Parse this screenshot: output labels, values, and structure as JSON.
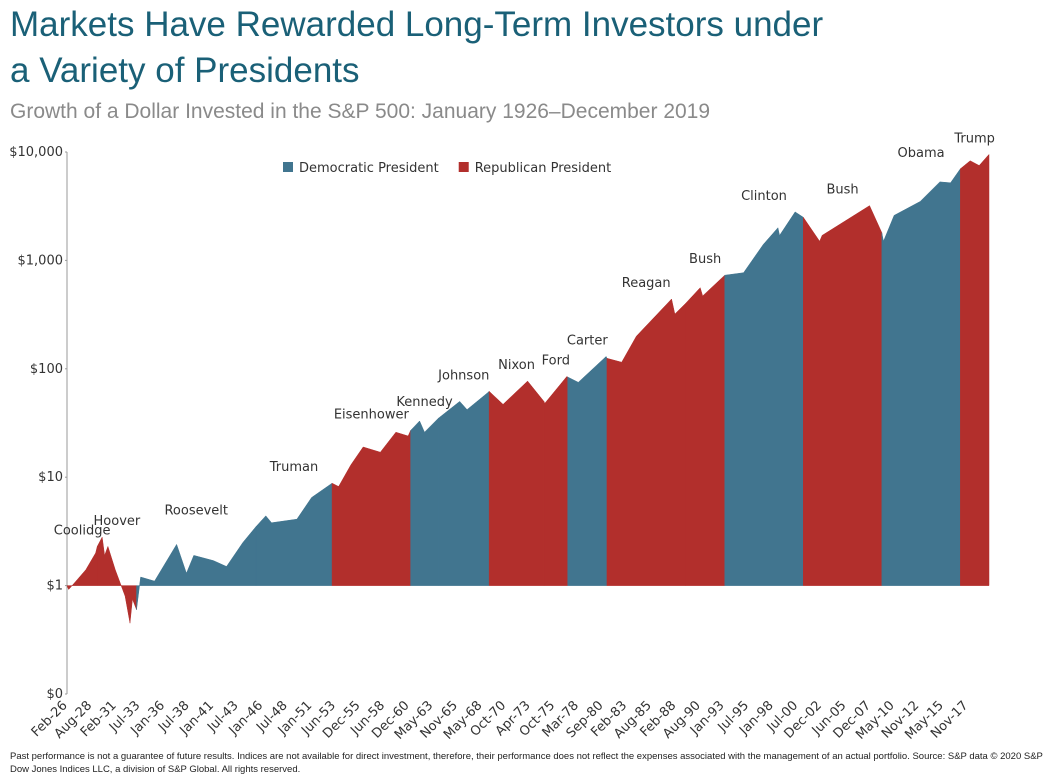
{
  "chart_data": {
    "type": "area",
    "title": "Markets Have Rewarded Long-Term Investors under a Variety of Presidents",
    "subtitle": "Growth of a Dollar Invested in the S&P 500: January 1926–December 2019",
    "footnote": "Past performance is not a guarantee of future results. Indices are not available for direct investment, therefore, their performance does not reflect the expenses associated with the management of an actual portfolio. Source: S&P data © 2020 S&P Dow Jones Indices LLC, a division of S&P Global. All rights reserved.",
    "log": true,
    "ylim": [
      0.1,
      10000
    ],
    "yticks": [
      {
        "value": 0.1,
        "label": "$0"
      },
      {
        "value": 1,
        "label": "$1"
      },
      {
        "value": 10,
        "label": "$10"
      },
      {
        "value": 100,
        "label": "$100"
      },
      {
        "value": 1000,
        "label": "$1,000"
      },
      {
        "value": 10000,
        "label": "$10,000"
      }
    ],
    "xlim": [
      "Jan-26",
      "Dec-19"
    ],
    "xticks": [
      "Feb-26",
      "Aug-28",
      "Feb-31",
      "Jul-33",
      "Jan-36",
      "Jul-38",
      "Jan-41",
      "Jul-43",
      "Jan-46",
      "Jul-48",
      "Jan-51",
      "Jun-53",
      "Dec-55",
      "Jun-58",
      "Dec-60",
      "May-63",
      "Nov-65",
      "May-68",
      "Oct-70",
      "Apr-73",
      "Oct-75",
      "Mar-78",
      "Sep-80",
      "Feb-83",
      "Aug-85",
      "Feb-88",
      "Aug-90",
      "Jan-93",
      "Jul-95",
      "Jan-98",
      "Jul-00",
      "Dec-02",
      "Jun-05",
      "Dec-07",
      "May-10",
      "Nov-12",
      "May-15",
      "Nov-17"
    ],
    "legend": [
      {
        "name": "Democratic President",
        "color": "#41758f"
      },
      {
        "name": "Republican President",
        "color": "#b22f2c"
      }
    ],
    "series": [
      {
        "name": "Coolidge",
        "color": "#b22f2c",
        "x": [
          "Jan-26",
          "Mar-26",
          "Dec-26",
          "Dec-27",
          "Dec-28",
          "Feb-29"
        ],
        "values": [
          1,
          0.92,
          1.1,
          1.4,
          2.0,
          2.3
        ]
      },
      {
        "name": "Hoover",
        "color": "#b22f2c",
        "x": [
          "Feb-29",
          "Aug-29",
          "Nov-29",
          "Mar-30",
          "Dec-30",
          "Dec-31",
          "Jun-32",
          "Sep-32",
          "Feb-33"
        ],
        "values": [
          2.3,
          2.8,
          1.9,
          2.3,
          1.4,
          0.8,
          0.45,
          0.75,
          0.6
        ]
      },
      {
        "name": "Roosevelt",
        "color": "#41758f",
        "x": [
          "Feb-33",
          "Jul-33",
          "Dec-34",
          "Mar-37",
          "Mar-38",
          "Dec-38",
          "Dec-40",
          "Apr-42",
          "Dec-43",
          "Apr-45"
        ],
        "values": [
          0.6,
          1.2,
          1.1,
          2.4,
          1.3,
          1.9,
          1.7,
          1.5,
          2.5,
          3.5
        ]
      },
      {
        "name": "Truman",
        "color": "#41758f",
        "x": [
          "Apr-45",
          "Apr-46",
          "Nov-46",
          "Jun-49",
          "Dec-50",
          "Jan-53"
        ],
        "values": [
          3.5,
          4.4,
          3.8,
          4.1,
          6.5,
          8.8
        ]
      },
      {
        "name": "Eisenhower",
        "color": "#b22f2c",
        "x": [
          "Jan-53",
          "Sep-53",
          "Dec-54",
          "Mar-56",
          "Dec-57",
          "Jul-59",
          "Oct-60",
          "Jan-61"
        ],
        "values": [
          8.8,
          8.2,
          13,
          19,
          17,
          26,
          24,
          27
        ]
      },
      {
        "name": "Kennedy",
        "color": "#41758f",
        "x": [
          "Jan-61",
          "Dec-61",
          "Jun-62",
          "Nov-63"
        ],
        "values": [
          27,
          33,
          26,
          35
        ]
      },
      {
        "name": "Johnson",
        "color": "#41758f",
        "x": [
          "Nov-63",
          "Jan-66",
          "Oct-66",
          "Nov-68",
          "Jan-69"
        ],
        "values": [
          35,
          50,
          42,
          60,
          62
        ]
      },
      {
        "name": "Nixon",
        "color": "#b22f2c",
        "x": [
          "Jan-69",
          "Jun-70",
          "Dec-72",
          "Aug-74"
        ],
        "values": [
          62,
          47,
          77,
          50
        ]
      },
      {
        "name": "Ford",
        "color": "#b22f2c",
        "x": [
          "Aug-74",
          "Sep-74",
          "Dec-76",
          "Jan-77"
        ],
        "values": [
          50,
          48,
          85,
          84
        ]
      },
      {
        "name": "Carter",
        "color": "#41758f",
        "x": [
          "Jan-77",
          "Feb-78",
          "Dec-80",
          "Jan-81"
        ],
        "values": [
          84,
          75,
          130,
          125
        ]
      },
      {
        "name": "Reagan",
        "color": "#b22f2c",
        "x": [
          "Jan-81",
          "Jul-82",
          "Jan-84",
          "Aug-87",
          "Dec-87",
          "Jan-89"
        ],
        "values": [
          125,
          115,
          200,
          440,
          320,
          400
        ]
      },
      {
        "name": "Bush",
        "color": "#b22f2c",
        "x": [
          "Jan-89",
          "Jul-90",
          "Oct-90",
          "Jan-93"
        ],
        "values": [
          400,
          560,
          470,
          730
        ]
      },
      {
        "name": "Clinton",
        "color": "#41758f",
        "x": [
          "Jan-93",
          "Dec-94",
          "Dec-96",
          "Jun-98",
          "Aug-98",
          "Mar-00",
          "Jan-01"
        ],
        "values": [
          730,
          770,
          1400,
          2000,
          1700,
          2800,
          2500
        ]
      },
      {
        "name": "Bush",
        "color": "#b22f2c",
        "x": [
          "Jan-01",
          "Sep-02",
          "Dec-02",
          "Oct-07",
          "Jan-09"
        ],
        "values": [
          2500,
          1500,
          1700,
          3200,
          1800
        ]
      },
      {
        "name": "Obama",
        "color": "#41758f",
        "x": [
          "Jan-09",
          "Mar-09",
          "Apr-10",
          "Dec-12",
          "Dec-14",
          "Jan-16",
          "Jan-17"
        ],
        "values": [
          1800,
          1500,
          2600,
          3500,
          5300,
          5200,
          7000
        ]
      },
      {
        "name": "Trump",
        "color": "#b22f2c",
        "x": [
          "Jan-17",
          "Jan-18",
          "Dec-18",
          "Dec-19"
        ],
        "values": [
          7000,
          8300,
          7500,
          9500
        ]
      }
    ]
  }
}
